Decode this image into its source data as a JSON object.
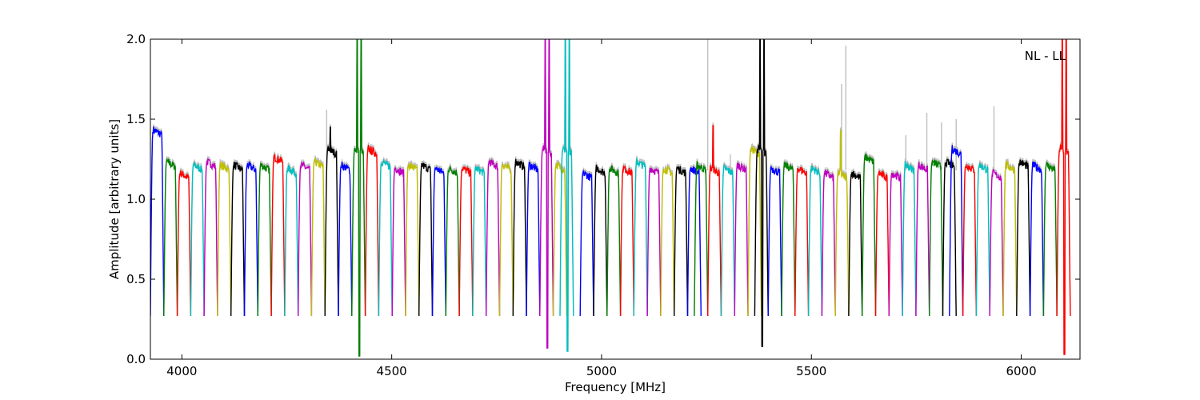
{
  "chart_data": {
    "type": "line",
    "annotation": "NL - LL",
    "xlabel": "Frequency [MHz]",
    "ylabel": "Amplitude [arbitrary units]",
    "xlim": [
      3925,
      6140
    ],
    "ylim": [
      0.0,
      2.0
    ],
    "x_ticks": [
      4000,
      4500,
      5000,
      5500,
      6000
    ],
    "y_ticks": [
      0.0,
      0.5,
      1.0,
      1.5,
      2.0
    ],
    "x_tick_labels": [
      "4000",
      "4500",
      "5000",
      "5500",
      "6000"
    ],
    "y_tick_labels": [
      "0.0",
      "0.5",
      "1.0",
      "1.5",
      "2.0"
    ],
    "grid": false,
    "background_series_color": "#bfbfbf",
    "color_cycle": [
      "#0000ff",
      "#008000",
      "#ff0000",
      "#00bfbf",
      "#bf00bf",
      "#bfbf00",
      "#000000"
    ],
    "channel_width_mhz": 32,
    "bands": [
      {
        "start": 3925,
        "color": "#0000ff",
        "level": 1.42
      },
      {
        "start": 3957,
        "color": "#008000",
        "level": 1.22
      },
      {
        "start": 3989,
        "color": "#ff0000",
        "level": 1.15
      },
      {
        "start": 4021,
        "color": "#00bfbf",
        "level": 1.2
      },
      {
        "start": 4053,
        "color": "#bf00bf",
        "level": 1.22
      },
      {
        "start": 4085,
        "color": "#bfbf00",
        "level": 1.2
      },
      {
        "start": 4117,
        "color": "#000000",
        "level": 1.2
      },
      {
        "start": 4149,
        "color": "#0000ff",
        "level": 1.2
      },
      {
        "start": 4181,
        "color": "#008000",
        "level": 1.2
      },
      {
        "start": 4213,
        "color": "#ff0000",
        "level": 1.25
      },
      {
        "start": 4245,
        "color": "#00bfbf",
        "level": 1.18
      },
      {
        "start": 4277,
        "color": "#bf00bf",
        "level": 1.2
      },
      {
        "start": 4309,
        "color": "#bfbf00",
        "level": 1.22
      },
      {
        "start": 4341,
        "color": "#000000",
        "level": 1.3,
        "spike": 1.45
      },
      {
        "start": 4373,
        "color": "#0000ff",
        "level": 1.2
      },
      {
        "start": 4405,
        "color": "#008000",
        "level": 1.3,
        "spike": 2.0,
        "dip": 0.02
      },
      {
        "start": 4437,
        "color": "#ff0000",
        "level": 1.3
      },
      {
        "start": 4469,
        "color": "#00bfbf",
        "level": 1.22
      },
      {
        "start": 4501,
        "color": "#bf00bf",
        "level": 1.18
      },
      {
        "start": 4533,
        "color": "#bfbf00",
        "level": 1.2
      },
      {
        "start": 4565,
        "color": "#000000",
        "level": 1.2
      },
      {
        "start": 4597,
        "color": "#0000ff",
        "level": 1.18
      },
      {
        "start": 4629,
        "color": "#008000",
        "level": 1.18
      },
      {
        "start": 4661,
        "color": "#ff0000",
        "level": 1.18
      },
      {
        "start": 4693,
        "color": "#00bfbf",
        "level": 1.18
      },
      {
        "start": 4725,
        "color": "#bf00bf",
        "level": 1.22
      },
      {
        "start": 4757,
        "color": "#bfbf00",
        "level": 1.2
      },
      {
        "start": 4789,
        "color": "#000000",
        "level": 1.22
      },
      {
        "start": 4821,
        "color": "#0000ff",
        "level": 1.2
      },
      {
        "start": 4853,
        "color": "#bf00bf",
        "level": 1.3,
        "spike": 2.0,
        "dip": 0.07
      },
      {
        "start": 4885,
        "color": "#bfbf00",
        "level": 1.2
      },
      {
        "start": 4901,
        "color": "#00bfbf",
        "level": 1.3,
        "spike": 2.0,
        "dip": 0.05
      },
      {
        "start": 4949,
        "color": "#0000ff",
        "level": 1.15
      },
      {
        "start": 4981,
        "color": "#000000",
        "level": 1.18
      },
      {
        "start": 5013,
        "color": "#008000",
        "level": 1.18
      },
      {
        "start": 5045,
        "color": "#ff0000",
        "level": 1.18
      },
      {
        "start": 5077,
        "color": "#00bfbf",
        "level": 1.22
      },
      {
        "start": 5109,
        "color": "#bf00bf",
        "level": 1.18
      },
      {
        "start": 5141,
        "color": "#bfbf00",
        "level": 1.18
      },
      {
        "start": 5173,
        "color": "#000000",
        "level": 1.18
      },
      {
        "start": 5205,
        "color": "#0000ff",
        "level": 1.18
      },
      {
        "start": 5221,
        "color": "#008000",
        "level": 1.2
      },
      {
        "start": 5253,
        "color": "#ff0000",
        "level": 1.18,
        "spike": 1.46
      },
      {
        "start": 5285,
        "color": "#00bfbf",
        "level": 1.18
      },
      {
        "start": 5317,
        "color": "#bf00bf",
        "level": 1.2
      },
      {
        "start": 5349,
        "color": "#bfbf00",
        "level": 1.3
      },
      {
        "start": 5365,
        "color": "#000000",
        "level": 1.3,
        "spike": 2.0,
        "dip": 0.08
      },
      {
        "start": 5397,
        "color": "#0000ff",
        "level": 1.18
      },
      {
        "start": 5429,
        "color": "#008000",
        "level": 1.2
      },
      {
        "start": 5461,
        "color": "#ff0000",
        "level": 1.18
      },
      {
        "start": 5493,
        "color": "#00bfbf",
        "level": 1.18
      },
      {
        "start": 5525,
        "color": "#bf00bf",
        "level": 1.15
      },
      {
        "start": 5557,
        "color": "#bfbf00",
        "level": 1.15,
        "spike": 1.43
      },
      {
        "start": 5589,
        "color": "#000000",
        "level": 1.15
      },
      {
        "start": 5621,
        "color": "#008000",
        "level": 1.25
      },
      {
        "start": 5653,
        "color": "#ff0000",
        "level": 1.15
      },
      {
        "start": 5685,
        "color": "#bf00bf",
        "level": 1.15
      },
      {
        "start": 5717,
        "color": "#00bfbf",
        "level": 1.2
      },
      {
        "start": 5749,
        "color": "#bf00bf",
        "level": 1.2
      },
      {
        "start": 5781,
        "color": "#008000",
        "level": 1.22
      },
      {
        "start": 5813,
        "color": "#000000",
        "level": 1.22
      },
      {
        "start": 5829,
        "color": "#0000ff",
        "level": 1.3
      },
      {
        "start": 5861,
        "color": "#ff0000",
        "level": 1.2
      },
      {
        "start": 5893,
        "color": "#00bfbf",
        "level": 1.2
      },
      {
        "start": 5925,
        "color": "#bf00bf",
        "level": 1.15
      },
      {
        "start": 5957,
        "color": "#bfbf00",
        "level": 1.2
      },
      {
        "start": 5989,
        "color": "#000000",
        "level": 1.22
      },
      {
        "start": 6021,
        "color": "#0000ff",
        "level": 1.2
      },
      {
        "start": 6053,
        "color": "#008000",
        "level": 1.2
      },
      {
        "start": 6085,
        "color": "#ff0000",
        "level": 1.3,
        "spike": 2.0,
        "dip": 0.03
      }
    ],
    "background_spikes": [
      {
        "x": 4345,
        "y": 1.56
      },
      {
        "x": 5253,
        "y": 2.0
      },
      {
        "x": 5307,
        "y": 1.28
      },
      {
        "x": 5572,
        "y": 1.72
      },
      {
        "x": 5582,
        "y": 1.96
      },
      {
        "x": 5725,
        "y": 1.4
      },
      {
        "x": 5775,
        "y": 1.54
      },
      {
        "x": 5810,
        "y": 1.48
      },
      {
        "x": 5845,
        "y": 1.5
      },
      {
        "x": 5935,
        "y": 1.58
      }
    ]
  }
}
